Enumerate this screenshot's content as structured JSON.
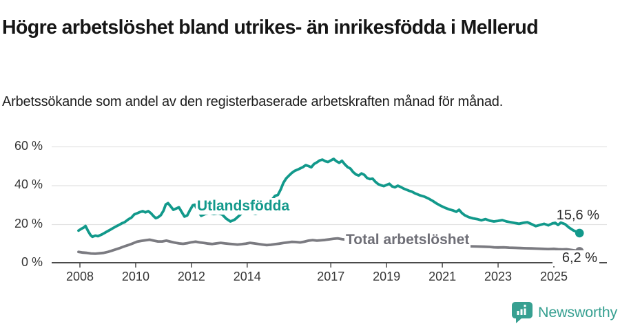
{
  "header": {
    "title": "Högre arbetslöshet bland utrikes- än inrikesfödda i Mellerud",
    "subtitle": "Arbetssökande som andel av den registerbaserade arbetskraften månad för månad."
  },
  "footer": {
    "brand": "Newsworthy",
    "brand_color": "#37a091",
    "logo_icon": "newsworthy-speech-bubble-barchart-icon"
  },
  "chart_data": {
    "type": "line",
    "title": "Högre arbetslöshet bland utrikes- än inrikesfödda i Mellerud",
    "subtitle": "Arbetssökande som andel av den registerbaserade arbetskraften månad för månad.",
    "xlabel": "",
    "ylabel": "",
    "xlim": [
      2007.8,
      2026.2
    ],
    "ylim": [
      0,
      65
    ],
    "grid": true,
    "grid_color": "#e2e2e2",
    "axis_color": "#4b4b4b",
    "legend_position": "inline-labels",
    "x_ticks": [
      {
        "value": 2008,
        "label": "2008"
      },
      {
        "value": 2010,
        "label": "2010"
      },
      {
        "value": 2012,
        "label": "2012"
      },
      {
        "value": 2014,
        "label": "2014"
      },
      {
        "value": 2017,
        "label": "2017"
      },
      {
        "value": 2019,
        "label": "2019"
      },
      {
        "value": 2021,
        "label": "2021"
      },
      {
        "value": 2023,
        "label": "2023"
      },
      {
        "value": 2025,
        "label": "2025"
      }
    ],
    "y_ticks": [
      {
        "value": 0,
        "label": "0 %"
      },
      {
        "value": 20,
        "label": "20 %"
      },
      {
        "value": 40,
        "label": "40 %"
      },
      {
        "value": 60,
        "label": "60 %"
      }
    ],
    "series": [
      {
        "name": "Utlandsfödda",
        "color": "#12998b",
        "label_color": "#12998b",
        "end_label": "15,6 %",
        "end_value": 15.6,
        "points": [
          [
            2007.95,
            16.9
          ],
          [
            2008.05,
            17.8
          ],
          [
            2008.13,
            18.4
          ],
          [
            2008.2,
            19.3
          ],
          [
            2008.3,
            16.5
          ],
          [
            2008.38,
            14.6
          ],
          [
            2008.45,
            13.7
          ],
          [
            2008.55,
            14.3
          ],
          [
            2008.65,
            14.0
          ],
          [
            2008.8,
            15.0
          ],
          [
            2008.95,
            16.2
          ],
          [
            2009.1,
            17.4
          ],
          [
            2009.25,
            18.7
          ],
          [
            2009.4,
            19.8
          ],
          [
            2009.5,
            20.6
          ],
          [
            2009.6,
            21.2
          ],
          [
            2009.75,
            22.8
          ],
          [
            2009.85,
            23.6
          ],
          [
            2009.95,
            25.2
          ],
          [
            2010.05,
            25.8
          ],
          [
            2010.15,
            26.4
          ],
          [
            2010.25,
            26.9
          ],
          [
            2010.35,
            26.3
          ],
          [
            2010.45,
            26.9
          ],
          [
            2010.55,
            25.8
          ],
          [
            2010.65,
            24.2
          ],
          [
            2010.72,
            23.3
          ],
          [
            2010.8,
            23.7
          ],
          [
            2010.9,
            24.8
          ],
          [
            2011.0,
            27.2
          ],
          [
            2011.08,
            30.3
          ],
          [
            2011.16,
            31.0
          ],
          [
            2011.25,
            29.5
          ],
          [
            2011.35,
            27.6
          ],
          [
            2011.45,
            28.2
          ],
          [
            2011.55,
            28.9
          ],
          [
            2011.65,
            26.5
          ],
          [
            2011.75,
            24.1
          ],
          [
            2011.85,
            24.7
          ],
          [
            2011.95,
            27.5
          ],
          [
            2012.05,
            29.9
          ],
          [
            2012.12,
            30.2
          ],
          [
            2012.22,
            27.5
          ],
          [
            2012.35,
            24.5
          ],
          [
            2012.5,
            25.5
          ],
          [
            2012.65,
            25.9
          ],
          [
            2012.8,
            25.4
          ],
          [
            2012.95,
            25.8
          ],
          [
            2013.1,
            25.2
          ],
          [
            2013.25,
            23.0
          ],
          [
            2013.4,
            21.6
          ],
          [
            2013.55,
            22.5
          ],
          [
            2013.7,
            24.4
          ],
          [
            2013.85,
            26.5
          ],
          [
            2014.0,
            26.0
          ],
          [
            2014.15,
            26.1
          ],
          [
            2014.3,
            25.5
          ],
          [
            2014.45,
            26.2
          ],
          [
            2014.6,
            25.8
          ],
          [
            2014.7,
            27.5
          ],
          [
            2014.8,
            30.0
          ],
          [
            2014.9,
            33.0
          ],
          [
            2015.0,
            34.8
          ],
          [
            2015.1,
            35.2
          ],
          [
            2015.2,
            38.0
          ],
          [
            2015.3,
            41.5
          ],
          [
            2015.4,
            43.8
          ],
          [
            2015.5,
            45.2
          ],
          [
            2015.6,
            46.6
          ],
          [
            2015.7,
            47.6
          ],
          [
            2015.8,
            48.2
          ],
          [
            2015.9,
            48.9
          ],
          [
            2016.0,
            49.6
          ],
          [
            2016.1,
            50.6
          ],
          [
            2016.2,
            50.1
          ],
          [
            2016.3,
            49.5
          ],
          [
            2016.4,
            51.2
          ],
          [
            2016.5,
            52.0
          ],
          [
            2016.6,
            53.0
          ],
          [
            2016.7,
            53.4
          ],
          [
            2016.8,
            52.6
          ],
          [
            2016.9,
            52.2
          ],
          [
            2017.0,
            53.0
          ],
          [
            2017.1,
            53.8
          ],
          [
            2017.2,
            52.6
          ],
          [
            2017.3,
            51.8
          ],
          [
            2017.4,
            52.8
          ],
          [
            2017.5,
            51.0
          ],
          [
            2017.6,
            49.6
          ],
          [
            2017.7,
            48.8
          ],
          [
            2017.8,
            47.0
          ],
          [
            2017.9,
            45.8
          ],
          [
            2018.0,
            45.2
          ],
          [
            2018.1,
            46.3
          ],
          [
            2018.2,
            45.6
          ],
          [
            2018.3,
            44.0
          ],
          [
            2018.4,
            43.4
          ],
          [
            2018.5,
            43.6
          ],
          [
            2018.6,
            42.0
          ],
          [
            2018.7,
            40.8
          ],
          [
            2018.8,
            40.2
          ],
          [
            2018.9,
            39.8
          ],
          [
            2019.0,
            40.4
          ],
          [
            2019.1,
            41.0
          ],
          [
            2019.2,
            39.6
          ],
          [
            2019.3,
            39.2
          ],
          [
            2019.4,
            40.0
          ],
          [
            2019.5,
            39.4
          ],
          [
            2019.6,
            38.6
          ],
          [
            2019.7,
            38.0
          ],
          [
            2019.8,
            37.4
          ],
          [
            2019.9,
            37.0
          ],
          [
            2020.0,
            36.2
          ],
          [
            2020.1,
            35.6
          ],
          [
            2020.2,
            35.0
          ],
          [
            2020.35,
            34.4
          ],
          [
            2020.5,
            33.4
          ],
          [
            2020.65,
            32.2
          ],
          [
            2020.8,
            30.8
          ],
          [
            2020.95,
            29.6
          ],
          [
            2021.1,
            28.6
          ],
          [
            2021.25,
            27.8
          ],
          [
            2021.4,
            27.2
          ],
          [
            2021.5,
            26.6
          ],
          [
            2021.6,
            27.6
          ],
          [
            2021.7,
            26.0
          ],
          [
            2021.8,
            24.8
          ],
          [
            2021.95,
            23.8
          ],
          [
            2022.1,
            23.2
          ],
          [
            2022.25,
            22.8
          ],
          [
            2022.4,
            22.2
          ],
          [
            2022.55,
            22.8
          ],
          [
            2022.7,
            22.0
          ],
          [
            2022.85,
            21.6
          ],
          [
            2023.0,
            21.9
          ],
          [
            2023.15,
            22.3
          ],
          [
            2023.3,
            21.6
          ],
          [
            2023.45,
            21.2
          ],
          [
            2023.6,
            20.8
          ],
          [
            2023.75,
            20.4
          ],
          [
            2023.9,
            20.9
          ],
          [
            2024.05,
            21.2
          ],
          [
            2024.2,
            20.2
          ],
          [
            2024.35,
            19.2
          ],
          [
            2024.5,
            19.8
          ],
          [
            2024.65,
            20.4
          ],
          [
            2024.8,
            19.6
          ],
          [
            2024.95,
            20.6
          ],
          [
            2025.05,
            20.9
          ],
          [
            2025.15,
            19.8
          ],
          [
            2025.25,
            21.0
          ],
          [
            2025.4,
            20.2
          ],
          [
            2025.55,
            18.4
          ],
          [
            2025.7,
            17.0
          ],
          [
            2025.92,
            15.6
          ]
        ]
      },
      {
        "name": "Total arbetslöshet",
        "color": "#7b7b81",
        "label_color": "#6f6f77",
        "end_label": "6,2 %",
        "end_value": 6.2,
        "points": [
          [
            2007.95,
            5.9
          ],
          [
            2008.1,
            5.6
          ],
          [
            2008.25,
            5.4
          ],
          [
            2008.4,
            5.1
          ],
          [
            2008.55,
            5.0
          ],
          [
            2008.7,
            5.2
          ],
          [
            2008.85,
            5.4
          ],
          [
            2009.0,
            5.9
          ],
          [
            2009.15,
            6.6
          ],
          [
            2009.3,
            7.3
          ],
          [
            2009.45,
            8.0
          ],
          [
            2009.6,
            8.8
          ],
          [
            2009.75,
            9.5
          ],
          [
            2009.9,
            10.3
          ],
          [
            2010.05,
            11.2
          ],
          [
            2010.2,
            11.6
          ],
          [
            2010.35,
            11.9
          ],
          [
            2010.5,
            12.2
          ],
          [
            2010.65,
            11.7
          ],
          [
            2010.8,
            11.3
          ],
          [
            2010.95,
            11.3
          ],
          [
            2011.1,
            11.7
          ],
          [
            2011.25,
            11.2
          ],
          [
            2011.4,
            10.7
          ],
          [
            2011.55,
            10.3
          ],
          [
            2011.7,
            10.1
          ],
          [
            2011.85,
            10.4
          ],
          [
            2012.0,
            10.9
          ],
          [
            2012.15,
            11.2
          ],
          [
            2012.3,
            10.8
          ],
          [
            2012.45,
            10.5
          ],
          [
            2012.6,
            10.2
          ],
          [
            2012.75,
            10.0
          ],
          [
            2012.9,
            10.3
          ],
          [
            2013.05,
            10.6
          ],
          [
            2013.2,
            10.3
          ],
          [
            2013.35,
            10.1
          ],
          [
            2013.5,
            9.9
          ],
          [
            2013.65,
            9.7
          ],
          [
            2013.8,
            9.9
          ],
          [
            2013.95,
            10.2
          ],
          [
            2014.1,
            10.6
          ],
          [
            2014.25,
            10.3
          ],
          [
            2014.4,
            10.0
          ],
          [
            2014.55,
            9.7
          ],
          [
            2014.7,
            9.4
          ],
          [
            2014.85,
            9.6
          ],
          [
            2015.0,
            9.9
          ],
          [
            2015.15,
            10.2
          ],
          [
            2015.3,
            10.5
          ],
          [
            2015.45,
            10.8
          ],
          [
            2015.6,
            11.1
          ],
          [
            2015.75,
            11.0
          ],
          [
            2015.9,
            10.8
          ],
          [
            2016.05,
            11.2
          ],
          [
            2016.2,
            11.7
          ],
          [
            2016.35,
            12.0
          ],
          [
            2016.5,
            11.7
          ],
          [
            2016.65,
            11.9
          ],
          [
            2016.8,
            12.1
          ],
          [
            2016.95,
            12.4
          ],
          [
            2017.1,
            12.7
          ],
          [
            2017.25,
            12.9
          ],
          [
            2017.4,
            12.5
          ],
          [
            2017.55,
            12.2
          ],
          [
            2017.7,
            12.0
          ],
          [
            2017.85,
            12.2
          ],
          [
            2018.0,
            12.4
          ],
          [
            2018.2,
            12.1
          ],
          [
            2018.4,
            11.8
          ],
          [
            2018.6,
            11.5
          ],
          [
            2018.8,
            11.2
          ],
          [
            2019.0,
            11.0
          ],
          [
            2019.25,
            10.7
          ],
          [
            2019.5,
            10.4
          ],
          [
            2019.75,
            10.2
          ],
          [
            2020.0,
            10.1
          ],
          [
            2020.25,
            9.9
          ],
          [
            2020.5,
            9.7
          ],
          [
            2020.75,
            9.5
          ],
          [
            2021.0,
            9.4
          ],
          [
            2021.25,
            9.2
          ],
          [
            2021.5,
            9.1
          ],
          [
            2021.75,
            9.0
          ],
          [
            2022.0,
            8.8
          ],
          [
            2022.25,
            8.7
          ],
          [
            2022.5,
            8.6
          ],
          [
            2022.7,
            8.5
          ],
          [
            2022.85,
            8.3
          ],
          [
            2023.0,
            8.2
          ],
          [
            2023.2,
            8.3
          ],
          [
            2023.4,
            8.1
          ],
          [
            2023.6,
            8.0
          ],
          [
            2023.8,
            7.9
          ],
          [
            2024.0,
            7.8
          ],
          [
            2024.2,
            7.7
          ],
          [
            2024.4,
            7.6
          ],
          [
            2024.6,
            7.5
          ],
          [
            2024.8,
            7.4
          ],
          [
            2025.0,
            7.5
          ],
          [
            2025.15,
            7.3
          ],
          [
            2025.3,
            7.2
          ],
          [
            2025.45,
            7.3
          ],
          [
            2025.6,
            7.0
          ],
          [
            2025.75,
            6.7
          ],
          [
            2025.92,
            6.2
          ]
        ]
      }
    ]
  }
}
